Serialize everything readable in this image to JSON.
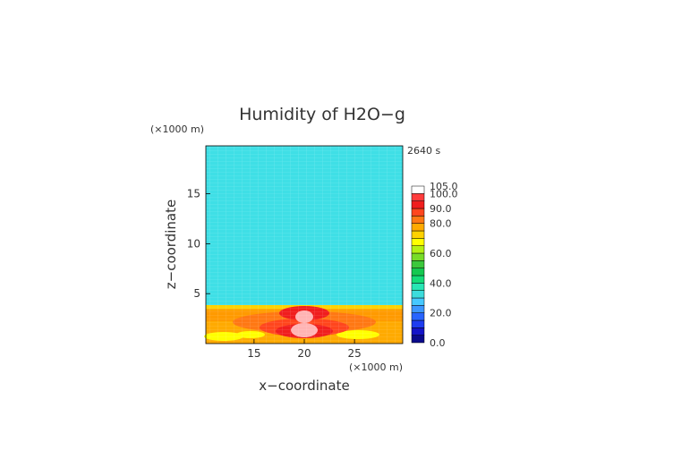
{
  "chart_data": {
    "type": "heatmap",
    "title": "Humidity of H2O−g",
    "xlabel": "x−coordinate",
    "ylabel": "z−coordinate",
    "x_unit": "(×1000 m)",
    "y_unit": "(×1000 m)",
    "time_label": "2640 s",
    "xlim": [
      10.2,
      29.8
    ],
    "ylim": [
      0,
      19.8
    ],
    "x_ticks": [
      15,
      20,
      25
    ],
    "y_ticks": [
      5,
      10,
      15
    ],
    "colorbar": {
      "levels": [
        0,
        5,
        10,
        15,
        20,
        25,
        30,
        35,
        40,
        45,
        50,
        55,
        60,
        65,
        70,
        75,
        80,
        85,
        90,
        95,
        100,
        105
      ],
      "colors": [
        "#0a0a8c",
        "#1414c8",
        "#1e3cf0",
        "#2864ff",
        "#3c96ff",
        "#46c8ff",
        "#3cdcdc",
        "#28e6b4",
        "#14dc78",
        "#14c850",
        "#3cc83c",
        "#78dc28",
        "#b4f014",
        "#ffff00",
        "#ffd200",
        "#ffaa00",
        "#ff7814",
        "#ff461e",
        "#f01e1e",
        "#ff3c3c",
        "#ffffff"
      ],
      "tick_labels": [
        "0.0",
        "20.0",
        "40.0",
        "60.0",
        "80.0",
        "90.0",
        "100.0",
        "105.0"
      ]
    },
    "field_summary": {
      "upper_layer_value": 45,
      "lower_layer_value": 80,
      "boundary_height": 3.7,
      "peak_value": 105,
      "peak_x": 20,
      "peak_z": 2.2
    }
  }
}
